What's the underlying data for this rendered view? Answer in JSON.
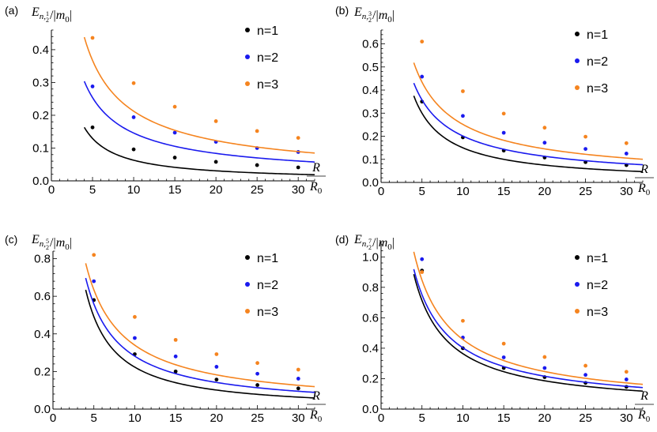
{
  "colors": {
    "n1": "#000000",
    "n2": "#1a1aee",
    "n3": "#f5841f"
  },
  "chart_data": [
    {
      "type": "scatter",
      "panel_label": "(a)",
      "ylabel": {
        "base": "E",
        "sub_n": "n,",
        "frac_num": "1",
        "frac_den": "2",
        "rest": "/|m",
        "rest_sub": "0",
        "rest_end": "|"
      },
      "xlabel": {
        "num": "R",
        "den": "R",
        "den_sub": "0"
      },
      "xlim": [
        0,
        32
      ],
      "ylim": [
        0,
        0.46
      ],
      "xticks": [
        0,
        5,
        10,
        15,
        20,
        25,
        30
      ],
      "yticks": [
        0.0,
        0.1,
        0.2,
        0.3,
        0.4
      ],
      "ytick_labels": [
        "0.0",
        "0.1",
        "0.2",
        "0.3",
        "0.4"
      ],
      "legend": [
        "n=1",
        "n=2",
        "n=3"
      ],
      "series": [
        {
          "name": "n=1",
          "color_key": "n1",
          "points": {
            "x": [
              5,
              10,
              15,
              20,
              25,
              30
            ],
            "y": [
              0.163,
              0.096,
              0.071,
              0.058,
              0.048,
              0.041
            ]
          },
          "curve": {
            "a": 0.69,
            "p": 1.04,
            "x_from": 4,
            "x_to": 32
          }
        },
        {
          "name": "n=2",
          "color_key": "n2",
          "points": {
            "x": [
              5,
              10,
              15,
              20,
              25,
              30
            ],
            "y": [
              0.288,
              0.194,
              0.147,
              0.119,
              0.1,
              0.088
            ]
          },
          "curve": {
            "a": 0.92,
            "p": 0.8,
            "x_from": 4,
            "x_to": 32
          }
        },
        {
          "name": "n=3",
          "color_key": "n3",
          "points": {
            "x": [
              5,
              10,
              15,
              20,
              25,
              30
            ],
            "y": [
              0.436,
              0.298,
              0.226,
              0.182,
              0.152,
              0.131
            ]
          },
          "curve": {
            "a": 1.31,
            "p": 0.79,
            "x_from": 4,
            "x_to": 32
          }
        }
      ]
    },
    {
      "type": "scatter",
      "panel_label": "(b)",
      "ylabel": {
        "base": "E",
        "sub_n": "n,",
        "frac_num": "3",
        "frac_den": "2",
        "rest": "/|m",
        "rest_sub": "0",
        "rest_end": "|"
      },
      "xlabel": {
        "num": "R",
        "den": "R",
        "den_sub": "0"
      },
      "xlim": [
        0,
        32
      ],
      "ylim": [
        0,
        0.66
      ],
      "xticks": [
        0,
        5,
        10,
        15,
        20,
        25,
        30
      ],
      "yticks": [
        0.0,
        0.1,
        0.2,
        0.3,
        0.4,
        0.5,
        0.6
      ],
      "ytick_labels": [
        "0.0",
        "0.1",
        "0.2",
        "0.3",
        "0.4",
        "0.5",
        "0.6"
      ],
      "legend": [
        "n=1",
        "n=2",
        "n=3"
      ],
      "series": [
        {
          "name": "n=1",
          "color_key": "n1",
          "points": {
            "x": [
              5,
              10,
              15,
              20,
              25,
              30
            ],
            "y": [
              0.35,
              0.195,
              0.138,
              0.108,
              0.088,
              0.075
            ]
          },
          "curve": {
            "a": 1.5,
            "p": 1.0,
            "x_from": 4,
            "x_to": 32
          }
        },
        {
          "name": "n=2",
          "color_key": "n2",
          "points": {
            "x": [
              5,
              10,
              15,
              20,
              25,
              30
            ],
            "y": [
              0.458,
              0.288,
              0.215,
              0.172,
              0.145,
              0.125
            ]
          },
          "curve": {
            "a": 1.36,
            "p": 0.83,
            "x_from": 4,
            "x_to": 32
          }
        },
        {
          "name": "n=3",
          "color_key": "n3",
          "points": {
            "x": [
              5,
              10,
              15,
              20,
              25,
              30
            ],
            "y": [
              0.61,
              0.395,
              0.298,
              0.237,
              0.198,
              0.17
            ]
          },
          "curve": {
            "a": 1.55,
            "p": 0.79,
            "x_from": 4,
            "x_to": 32
          }
        }
      ]
    },
    {
      "type": "scatter",
      "panel_label": "(c)",
      "ylabel": {
        "base": "E",
        "sub_n": "n,",
        "frac_num": "5",
        "frac_den": "2",
        "rest": "/|m",
        "rest_sub": "0",
        "rest_end": "|"
      },
      "xlabel": {
        "num": "R",
        "den": "R",
        "den_sub": "0"
      },
      "xlim": [
        0,
        32
      ],
      "ylim": [
        0,
        0.84
      ],
      "xticks": [
        0,
        5,
        10,
        15,
        20,
        25,
        30
      ],
      "yticks": [
        0.0,
        0.2,
        0.4,
        0.6,
        0.8
      ],
      "ytick_labels": [
        "0.0",
        "0.2",
        "0.4",
        "0.6",
        "0.8"
      ],
      "legend": [
        "n=1",
        "n=2",
        "n=3"
      ],
      "series": [
        {
          "name": "n=1",
          "color_key": "n1",
          "points": {
            "x": [
              5,
              10,
              15,
              20,
              25,
              30
            ],
            "y": [
              0.58,
              0.292,
              0.2,
              0.157,
              0.128,
              0.11
            ]
          },
          "curve": {
            "a": 3.08,
            "p": 1.14,
            "x_from": 4,
            "x_to": 32
          }
        },
        {
          "name": "n=2",
          "color_key": "n2",
          "points": {
            "x": [
              5,
              10,
              15,
              20,
              25,
              30
            ],
            "y": [
              0.68,
              0.378,
              0.28,
              0.225,
              0.188,
              0.162
            ]
          },
          "curve": {
            "a": 2.75,
            "p": 0.99,
            "x_from": 4,
            "x_to": 32
          }
        },
        {
          "name": "n=3",
          "color_key": "n3",
          "points": {
            "x": [
              5,
              10,
              15,
              20,
              25,
              30
            ],
            "y": [
              0.82,
              0.49,
              0.368,
              0.292,
              0.245,
              0.21
            ]
          },
          "curve": {
            "a": 2.7,
            "p": 0.9,
            "x_from": 4,
            "x_to": 32
          }
        }
      ]
    },
    {
      "type": "scatter",
      "panel_label": "(d)",
      "ylabel": {
        "base": "E",
        "sub_n": "n,",
        "frac_num": "7",
        "frac_den": "2",
        "rest": "/|m",
        "rest_sub": "0",
        "rest_end": "|"
      },
      "xlabel": {
        "num": "R",
        "den": "R",
        "den_sub": "0"
      },
      "xlim": [
        0,
        32
      ],
      "ylim": [
        0,
        1.1
      ],
      "xticks": [
        0,
        5,
        10,
        15,
        20,
        25,
        30
      ],
      "yticks": [
        0.0,
        0.2,
        0.4,
        0.6,
        0.8,
        1.0
      ],
      "ytick_labels": [
        "0.0",
        "0.2",
        "0.4",
        "0.6",
        "0.8",
        "1.0"
      ],
      "legend": [
        "n=1",
        "n=2",
        "n=3"
      ],
      "series": [
        {
          "name": "n=1",
          "color_key": "n1",
          "points": {
            "x": [
              5,
              10,
              15,
              20,
              25,
              30
            ],
            "y": [
              0.91,
              0.4,
              0.27,
              0.21,
              0.172,
              0.146
            ]
          },
          "curve": {
            "a": 3.4,
            "p": 0.97,
            "x_from": 4,
            "x_to": 32
          }
        },
        {
          "name": "n=2",
          "color_key": "n2",
          "points": {
            "x": [
              5,
              10,
              15,
              20,
              25,
              30
            ],
            "y": [
              0.985,
              0.47,
              0.34,
              0.27,
              0.225,
              0.195
            ]
          },
          "curve": {
            "a": 3.2,
            "p": 0.9,
            "x_from": 4,
            "x_to": 32
          }
        },
        {
          "name": "n=3",
          "color_key": "n3",
          "points": {
            "x": [
              5,
              10,
              15,
              20,
              25,
              30
            ],
            "y": [
              0.9,
              0.58,
              0.43,
              0.342,
              0.285,
              0.245
            ]
          },
          "curve": {
            "a": 3.55,
            "p": 0.89,
            "x_from": 4,
            "x_to": 32
          }
        }
      ]
    }
  ]
}
